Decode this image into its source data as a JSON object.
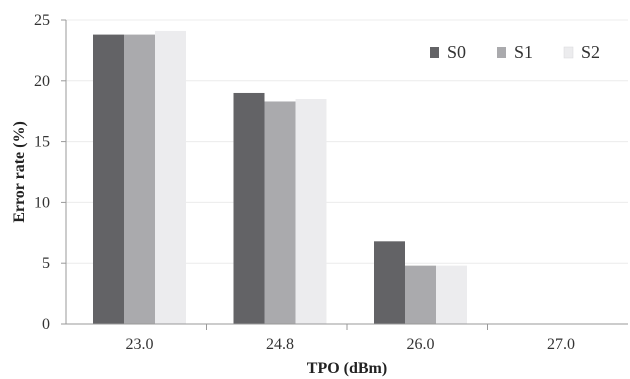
{
  "chart_data": {
    "type": "bar",
    "title": "",
    "xlabel": "TPO (dBm)",
    "ylabel": "Error rate (%)",
    "categories": [
      "23.0",
      "24.8",
      "26.0",
      "27.0"
    ],
    "series": [
      {
        "name": "S0",
        "color": "#636366",
        "values": [
          23.8,
          19.0,
          6.8,
          0
        ]
      },
      {
        "name": "S1",
        "color": "#aaaaad",
        "values": [
          23.8,
          18.3,
          4.8,
          0
        ]
      },
      {
        "name": "S2",
        "color": "#ececee",
        "values": [
          24.1,
          18.5,
          4.8,
          0
        ]
      }
    ],
    "ylim": [
      0,
      25
    ],
    "yticks": [
      0,
      5,
      10,
      15,
      20,
      25
    ],
    "grid": true,
    "legend_position": "top-right"
  }
}
